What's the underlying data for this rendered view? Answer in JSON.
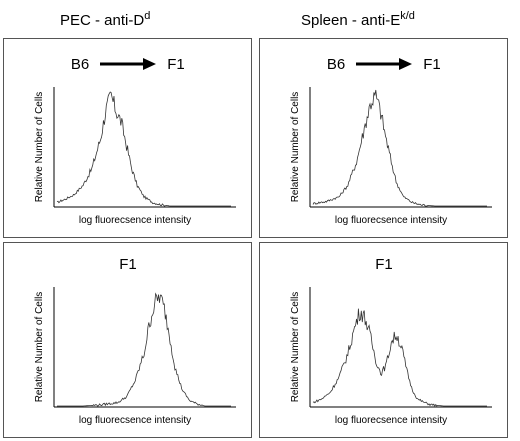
{
  "figure": {
    "col_left_title": "PEC - anti-D",
    "col_left_sup": "d",
    "col_right_title": "Spleen - anti-E",
    "col_right_sup": "k/d"
  },
  "chart_data": [
    {
      "type": "line",
      "panel_label_left": "B6",
      "panel_label_right": "F1",
      "arrow": true,
      "xlabel": "log fluorecsence intensity",
      "ylabel": "Relative Number of Cells",
      "xlim": [
        0,
        100
      ],
      "ylim": [
        0,
        100
      ],
      "x": [
        0,
        5,
        10,
        15,
        20,
        25,
        28,
        31,
        34,
        37,
        40,
        43,
        46,
        50,
        55,
        60,
        65,
        75,
        85,
        100
      ],
      "values": [
        3,
        6,
        10,
        18,
        32,
        58,
        82,
        95,
        82,
        72,
        52,
        32,
        18,
        8,
        3,
        1,
        0,
        0,
        0,
        0
      ]
    },
    {
      "type": "line",
      "panel_label_left": "B6",
      "panel_label_right": "F1",
      "arrow": true,
      "xlabel": "log fluorecsence intensity",
      "ylabel": "Relative Number of Cells",
      "xlim": [
        0,
        100
      ],
      "ylim": [
        0,
        100
      ],
      "x": [
        0,
        8,
        15,
        20,
        25,
        30,
        33,
        36,
        39,
        42,
        45,
        48,
        52,
        57,
        62,
        70,
        80,
        90,
        100
      ],
      "values": [
        2,
        4,
        8,
        18,
        38,
        70,
        88,
        96,
        80,
        58,
        38,
        20,
        8,
        3,
        1,
        0,
        0,
        0,
        0
      ]
    },
    {
      "type": "line",
      "panel_label_left": "F1",
      "panel_label_right": "",
      "arrow": false,
      "xlabel": "log fluorecsence intensity",
      "ylabel": "Relative Number of Cells",
      "xlim": [
        0,
        100
      ],
      "ylim": [
        0,
        100
      ],
      "x": [
        0,
        15,
        25,
        35,
        40,
        45,
        50,
        53,
        56,
        59,
        62,
        65,
        68,
        72,
        76,
        80,
        85,
        100
      ],
      "values": [
        0,
        0,
        1,
        3,
        8,
        22,
        45,
        70,
        88,
        95,
        82,
        58,
        32,
        14,
        5,
        2,
        0,
        0
      ]
    },
    {
      "type": "line",
      "panel_label_left": "F1",
      "panel_label_right": "",
      "arrow": false,
      "xlabel": "log fluorecsence intensity",
      "ylabel": "Relative Number of Cells",
      "xlim": [
        0,
        100
      ],
      "ylim": [
        0,
        100
      ],
      "x": [
        0,
        5,
        10,
        15,
        20,
        24,
        27,
        30,
        33,
        36,
        39,
        42,
        45,
        48,
        51,
        54,
        57,
        60,
        64,
        68,
        75,
        85,
        100
      ],
      "values": [
        3,
        6,
        12,
        25,
        45,
        68,
        82,
        76,
        60,
        40,
        28,
        35,
        55,
        62,
        50,
        30,
        14,
        6,
        3,
        1,
        0,
        0,
        0
      ]
    }
  ]
}
